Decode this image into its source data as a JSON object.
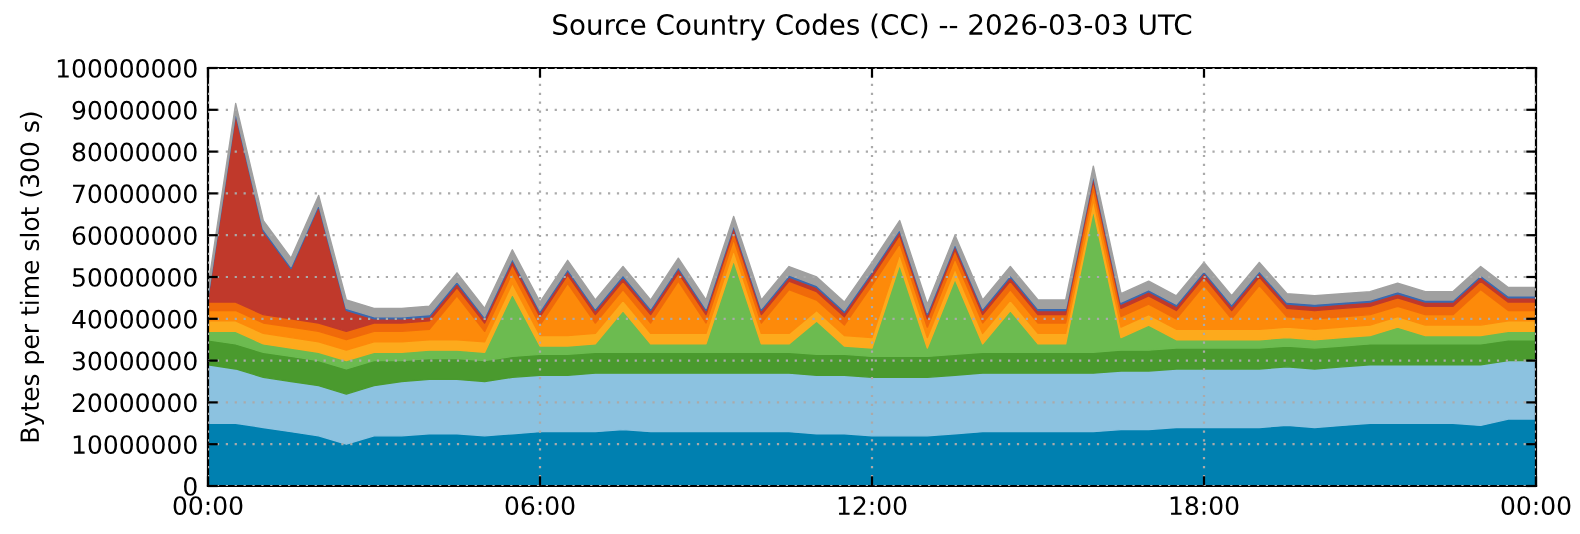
{
  "chart_data": {
    "type": "area",
    "stacked": true,
    "title": "Source Country Codes (CC) -- 2026-03-03 UTC",
    "ylabel": "Bytes per time slot (300 s)",
    "x": [
      0,
      0.5,
      1,
      1.5,
      2,
      2.5,
      3,
      3.5,
      4,
      4.5,
      5,
      5.5,
      6,
      6.5,
      7,
      7.5,
      8,
      8.5,
      9,
      9.5,
      10,
      10.5,
      11,
      11.5,
      12,
      12.5,
      13,
      13.5,
      14,
      14.5,
      15,
      15.5,
      16,
      16.5,
      17,
      17.5,
      18,
      18.5,
      19,
      19.5,
      20,
      20.5,
      21,
      21.5,
      22,
      22.5,
      23,
      23.5,
      24
    ],
    "xlim": [
      0,
      24
    ],
    "xticks": [
      {
        "value": 0,
        "label": "00:00"
      },
      {
        "value": 6,
        "label": "06:00"
      },
      {
        "value": 12,
        "label": "12:00"
      },
      {
        "value": 18,
        "label": "18:00"
      },
      {
        "value": 24,
        "label": "00:00"
      }
    ],
    "ylim": [
      0,
      100000000
    ],
    "yticks": [
      0,
      10000000,
      20000000,
      30000000,
      40000000,
      50000000,
      60000000,
      70000000,
      80000000,
      90000000,
      100000000
    ],
    "grid": true,
    "series": [
      {
        "color": "#0080b0",
        "values": [
          15000000,
          15000000,
          14000000,
          13000000,
          12000000,
          10000000,
          12000000,
          12000000,
          12500000,
          12500000,
          12000000,
          12500000,
          13000000,
          13000000,
          13000000,
          13500000,
          13000000,
          13000000,
          13000000,
          13000000,
          13000000,
          13000000,
          12500000,
          12500000,
          12000000,
          12000000,
          12000000,
          12500000,
          13000000,
          13000000,
          13000000,
          13000000,
          13000000,
          13500000,
          13500000,
          14000000,
          14000000,
          14000000,
          14000000,
          14500000,
          14000000,
          14500000,
          15000000,
          15000000,
          15000000,
          15000000,
          14500000,
          16000000,
          16000000
        ]
      },
      {
        "color": "#8cc2e0",
        "values": [
          14000000,
          13000000,
          12000000,
          12000000,
          12000000,
          12000000,
          12000000,
          13000000,
          13000000,
          13000000,
          13000000,
          13500000,
          13500000,
          13500000,
          14000000,
          13500000,
          14000000,
          14000000,
          14000000,
          14000000,
          14000000,
          14000000,
          14000000,
          14000000,
          14000000,
          14000000,
          14000000,
          14000000,
          14000000,
          14000000,
          14000000,
          14000000,
          14000000,
          14000000,
          14000000,
          14000000,
          14000000,
          14000000,
          14000000,
          14000000,
          14000000,
          14000000,
          14000000,
          14000000,
          14000000,
          14000000,
          14500000,
          14000000,
          14000000
        ]
      },
      {
        "color": "#4a9a2e",
        "values": [
          6000000,
          6000000,
          6000000,
          6000000,
          6000000,
          6000000,
          6000000,
          5000000,
          5000000,
          5000000,
          5000000,
          5000000,
          5000000,
          5000000,
          5000000,
          5000000,
          5000000,
          5000000,
          5000000,
          5000000,
          5000000,
          5000000,
          5000000,
          5000000,
          5000000,
          5000000,
          5000000,
          5000000,
          5000000,
          5000000,
          5000000,
          5000000,
          5000000,
          5000000,
          5000000,
          5000000,
          5000000,
          5000000,
          5000000,
          5000000,
          5000000,
          5000000,
          5000000,
          5000000,
          5000000,
          5000000,
          5000000,
          5000000,
          5000000
        ]
      },
      {
        "color": "#6cbb50",
        "values": [
          2000000,
          3000000,
          2000000,
          2000000,
          2000000,
          2000000,
          2000000,
          2000000,
          2000000,
          2000000,
          2000000,
          15000000,
          2000000,
          2000000,
          2000000,
          10000000,
          2000000,
          2000000,
          2000000,
          22000000,
          2000000,
          2000000,
          8000000,
          2000000,
          2000000,
          22000000,
          2000000,
          18000000,
          2000000,
          10000000,
          2000000,
          2000000,
          34000000,
          3000000,
          6000000,
          2000000,
          2000000,
          2000000,
          2000000,
          2000000,
          2000000,
          2000000,
          2000000,
          4000000,
          2000000,
          2000000,
          2000000,
          2000000,
          2000000
        ]
      },
      {
        "color": "#fdaa1c",
        "values": [
          2500000,
          2500000,
          2500000,
          2500000,
          2500000,
          2500000,
          2500000,
          2500000,
          2500000,
          2500000,
          2500000,
          2500000,
          2500000,
          2500000,
          2500000,
          2500000,
          2500000,
          2500000,
          2500000,
          2500000,
          2500000,
          2500000,
          2500000,
          2500000,
          2500000,
          2500000,
          2500000,
          2500000,
          2500000,
          2500000,
          2500000,
          2500000,
          2500000,
          2500000,
          2500000,
          2500000,
          2500000,
          2500000,
          2500000,
          2500000,
          2500000,
          2500000,
          2500000,
          2500000,
          2500000,
          2500000,
          2500000,
          2500000,
          2500000
        ]
      },
      {
        "color": "#fd8a0a",
        "values": [
          2500000,
          2500000,
          2500000,
          2500000,
          2500000,
          2500000,
          2500000,
          2500000,
          2500000,
          10500000,
          2500000,
          2500000,
          2500000,
          12500000,
          2500000,
          2500000,
          2500000,
          12500000,
          2500000,
          2500000,
          2500000,
          10500000,
          2500000,
          2500000,
          12500000,
          2500000,
          2500000,
          2500000,
          2500000,
          2500000,
          2500000,
          2500000,
          2500000,
          2500000,
          2500000,
          2500000,
          10500000,
          2500000,
          10500000,
          2500000,
          2500000,
          2500000,
          2500000,
          2500000,
          2500000,
          2500000,
          8500000,
          2500000,
          2500000
        ]
      },
      {
        "color": "#f06a0a",
        "values": [
          2000000,
          2000000,
          2000000,
          2000000,
          2000000,
          2000000,
          2000000,
          2000000,
          2000000,
          2000000,
          2000000,
          2000000,
          2000000,
          2000000,
          2000000,
          2000000,
          2000000,
          2000000,
          2000000,
          2000000,
          2000000,
          2000000,
          2000000,
          2000000,
          2000000,
          2000000,
          2000000,
          2000000,
          2000000,
          2000000,
          2000000,
          2000000,
          2000000,
          2000000,
          2000000,
          2000000,
          2000000,
          2000000,
          2000000,
          2000000,
          2000000,
          2000000,
          2000000,
          2000000,
          2000000,
          2000000,
          2000000,
          2000000,
          2000000
        ]
      },
      {
        "color": "#c0392b",
        "values": [
          1000000,
          45000000,
          20000000,
          12000000,
          28000000,
          5000000,
          1000000,
          1000000,
          1000000,
          1000000,
          1000000,
          1000000,
          1000000,
          1000000,
          1000000,
          1000000,
          1000000,
          1000000,
          1000000,
          1000000,
          1000000,
          1000000,
          1000000,
          1000000,
          1000000,
          1000000,
          1000000,
          1000000,
          1000000,
          1000000,
          1000000,
          1000000,
          1000000,
          1000000,
          1000000,
          1000000,
          1000000,
          1000000,
          1000000,
          1000000,
          1000000,
          1000000,
          1000000,
          1000000,
          1000000,
          1000000,
          1000000,
          1000000,
          1000000
        ]
      },
      {
        "color": "#3a6ab0",
        "values": [
          500000,
          500000,
          500000,
          500000,
          500000,
          500000,
          500000,
          500000,
          500000,
          500000,
          500000,
          500000,
          500000,
          500000,
          500000,
          500000,
          500000,
          500000,
          500000,
          500000,
          500000,
          500000,
          500000,
          500000,
          500000,
          500000,
          500000,
          500000,
          500000,
          500000,
          500000,
          500000,
          500000,
          500000,
          500000,
          500000,
          500000,
          500000,
          500000,
          500000,
          500000,
          500000,
          500000,
          500000,
          500000,
          500000,
          500000,
          500000,
          500000
        ]
      },
      {
        "color": "#a0a0a0",
        "values": [
          2000000,
          2000000,
          2000000,
          2000000,
          2000000,
          2000000,
          2000000,
          2000000,
          2000000,
          2000000,
          2000000,
          2000000,
          2000000,
          2000000,
          2000000,
          2000000,
          2000000,
          2000000,
          2000000,
          2000000,
          2000000,
          2000000,
          2000000,
          2000000,
          2000000,
          2000000,
          2000000,
          2000000,
          2000000,
          2000000,
          2000000,
          2000000,
          2000000,
          2000000,
          2000000,
          2000000,
          2000000,
          2000000,
          2000000,
          2000000,
          2000000,
          2000000,
          2000000,
          2000000,
          2000000,
          2000000,
          2000000,
          2000000,
          2000000
        ]
      }
    ]
  }
}
